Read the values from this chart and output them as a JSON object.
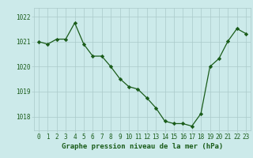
{
  "hours": [
    0,
    1,
    2,
    3,
    4,
    5,
    6,
    7,
    8,
    9,
    10,
    11,
    12,
    13,
    14,
    15,
    16,
    17,
    18,
    19,
    20,
    21,
    22,
    23
  ],
  "pressure": [
    1021.0,
    1020.9,
    1021.1,
    1021.1,
    1021.75,
    1020.9,
    1020.42,
    1020.42,
    1020.0,
    1019.52,
    1019.2,
    1019.1,
    1018.75,
    1018.35,
    1017.82,
    1017.72,
    1017.72,
    1017.62,
    1018.12,
    1020.0,
    1020.32,
    1021.02,
    1021.52,
    1021.32
  ],
  "line_color": "#1a5c1a",
  "marker": "D",
  "marker_size": 2.2,
  "bg_color": "#cceaea",
  "grid_color": "#aacaca",
  "xlabel": "Graphe pression niveau de la mer (hPa)",
  "ylim_min": 1017.45,
  "ylim_max": 1022.35,
  "yticks": [
    1018,
    1019,
    1020,
    1021,
    1022
  ],
  "xticks": [
    0,
    1,
    2,
    3,
    4,
    5,
    6,
    7,
    8,
    9,
    10,
    11,
    12,
    13,
    14,
    15,
    16,
    17,
    18,
    19,
    20,
    21,
    22,
    23
  ],
  "tick_fontsize": 5.5,
  "xlabel_fontsize": 6.5
}
